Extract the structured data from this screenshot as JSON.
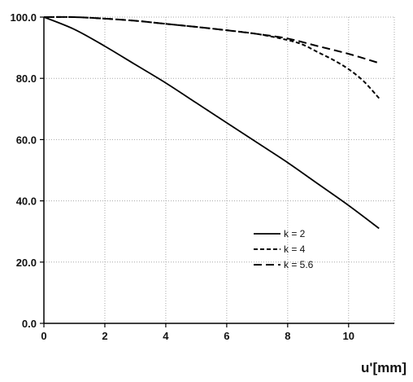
{
  "chart_data": {
    "type": "line",
    "title": "",
    "xlabel": "u'[mm]",
    "ylabel": "",
    "xlim": [
      0,
      11.5
    ],
    "ylim": [
      0,
      100
    ],
    "x_ticks": [
      {
        "value": 0,
        "label": "0"
      },
      {
        "value": 2,
        "label": "2"
      },
      {
        "value": 4,
        "label": "4"
      },
      {
        "value": 6,
        "label": "6"
      },
      {
        "value": 8,
        "label": "8"
      },
      {
        "value": 10,
        "label": "10"
      }
    ],
    "y_ticks": [
      {
        "value": 0,
        "label": "0.0"
      },
      {
        "value": 20,
        "label": "20.0"
      },
      {
        "value": 40,
        "label": "40.0"
      },
      {
        "value": 60,
        "label": "60.0"
      },
      {
        "value": 80,
        "label": "80.0"
      },
      {
        "value": 100,
        "label": "100.0"
      }
    ],
    "grid": true,
    "legend_position": "lower-right",
    "series": [
      {
        "name": "k = 2",
        "dash": "solid",
        "x": [
          0,
          1,
          2,
          3,
          4,
          5,
          6,
          7,
          8,
          9,
          10,
          11
        ],
        "y": [
          100,
          96,
          90.5,
          84.5,
          78.5,
          72,
          65.5,
          59,
          52.5,
          45.5,
          38.5,
          31
        ]
      },
      {
        "name": "k = 4",
        "dash": "short",
        "x": [
          0,
          1,
          2,
          3,
          4,
          5,
          6,
          7,
          8,
          8.5,
          9,
          9.5,
          10,
          10.5,
          11
        ],
        "y": [
          100,
          100,
          99.5,
          98.8,
          97.8,
          96.8,
          95.7,
          94.5,
          92.5,
          91,
          88.5,
          86,
          83,
          79,
          73.5
        ]
      },
      {
        "name": "k = 5.6",
        "dash": "long",
        "x": [
          0,
          1,
          2,
          3,
          4,
          5,
          6,
          7,
          8,
          9,
          10,
          11
        ],
        "y": [
          100,
          100,
          99.5,
          98.8,
          97.8,
          96.8,
          95.7,
          94.5,
          93,
          90.5,
          88,
          85
        ]
      }
    ]
  }
}
